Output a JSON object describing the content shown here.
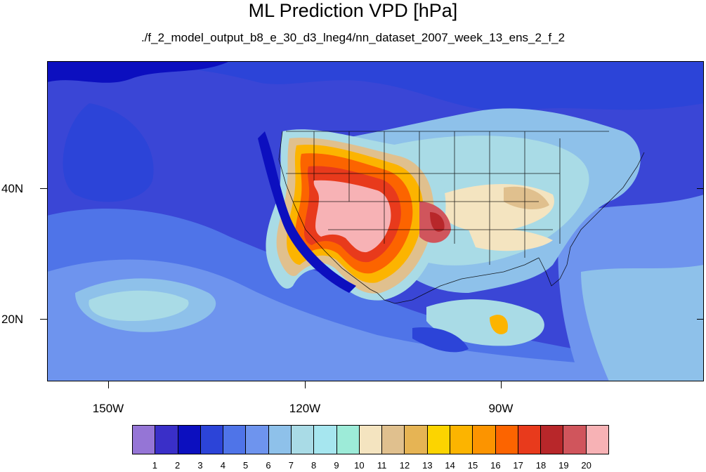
{
  "title": "ML Prediction VPD [hPa]",
  "subtitle": "./f_2_model_output_b8_e_30_d3_lneg4/nn_dataset_2007_week_13_ens_2_f_2",
  "axes": {
    "y_labels": [
      "40N",
      "20N"
    ],
    "x_labels": [
      "150W",
      "120W",
      "90W"
    ]
  },
  "colorbar": {
    "colors": [
      "#9575d6",
      "#3a2fc8",
      "#0c0fbf",
      "#2c44d8",
      "#4f74e8",
      "#6e94ee",
      "#8ec1ea",
      "#a9dbe6",
      "#a6e6ef",
      "#9debd8",
      "#f4e4c0",
      "#e0c08e",
      "#e6b454",
      "#fcd400",
      "#fcb400",
      "#fc9400",
      "#fc6400",
      "#e83a1c",
      "#b8272a",
      "#d0555c",
      "#f7b2b5"
    ],
    "labels": [
      "1",
      "2",
      "3",
      "4",
      "5",
      "6",
      "7",
      "8",
      "9",
      "10",
      "11",
      "12",
      "13",
      "14",
      "15",
      "16",
      "17",
      "18",
      "19",
      "20"
    ]
  }
}
